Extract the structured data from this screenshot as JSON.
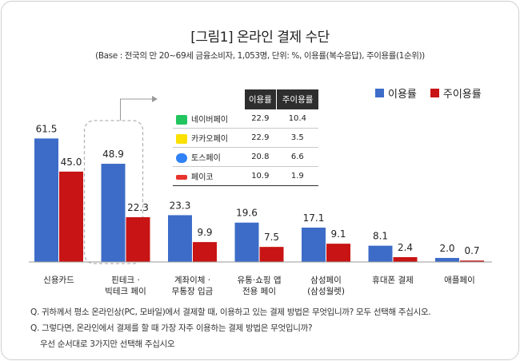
{
  "title": "[그림1] 온라인 결제 수단",
  "subtitle": "(Base : 전국의 만 20~69세 금융소비자, 1,053명, 단위: %, 이용률(복수응답), 주이용률(1순위))",
  "legend": [
    {
      "label": "이용률",
      "color": "#3d6cc8"
    },
    {
      "label": "주이용률",
      "color": "#c81414"
    }
  ],
  "chart_data": {
    "type": "bar",
    "categories": [
      [
        "신용카드"
      ],
      [
        "핀테크 ·",
        "빅테크 페이"
      ],
      [
        "계좌이체 ·",
        "무통장 입금"
      ],
      [
        "유통·쇼핑 앱",
        "전용 페이"
      ],
      [
        "삼성페이",
        "(삼성월렛)"
      ],
      [
        "휴대폰 결제"
      ],
      [
        "애플페이"
      ]
    ],
    "series": [
      {
        "name": "이용률",
        "color": "#3d6cc8",
        "values": [
          61.5,
          48.9,
          23.3,
          19.6,
          17.1,
          8.1,
          2.0
        ],
        "labels": [
          "61.5",
          "48.9",
          "23.3",
          "19.6",
          "17.1",
          "8.1",
          "2.0"
        ]
      },
      {
        "name": "주이용률",
        "color": "#c81414",
        "values": [
          45.0,
          22.3,
          9.9,
          7.5,
          9.1,
          2.4,
          0.7
        ],
        "labels": [
          "45.0",
          "22.3",
          "9.9",
          "7.5",
          "9.1",
          "2.4",
          "0.7"
        ]
      }
    ],
    "ylim": [
      0,
      70
    ],
    "grid": false,
    "legend_position": "top-right",
    "highlight_category": 1
  },
  "inset_table": {
    "headers": [
      "이용률",
      "주이용률"
    ],
    "rows": [
      {
        "name": "네이버페이",
        "icon": "naverpay-icon",
        "icon_color": "#22c55e",
        "use": "22.9",
        "main": "10.4"
      },
      {
        "name": "카카오페이",
        "icon": "kakaopay-icon",
        "icon_color": "#fae100",
        "use": "22.9",
        "main": "3.5"
      },
      {
        "name": "토스페이",
        "icon": "tosspay-icon",
        "icon_color": "#3182f6",
        "use": "20.8",
        "main": "6.6"
      },
      {
        "name": "페이코",
        "icon": "payco-icon",
        "icon_color": "#e8332d",
        "use": "10.9",
        "main": "1.9"
      }
    ]
  },
  "notes": [
    "Q. 귀하께서 평소 온라인상(PC, 모바일)에서 결제할 때, 이용하고 있는 결제 방법은 무엇입니까? 모두 선택해 주십시오.",
    "Q. 그렇다면, 온라인에서 결제를 할 때 가장 자주 이용하는 결제 방법은 무엇입니까?",
    "우선 순서대로 3가지만 선택해 주십시오"
  ]
}
